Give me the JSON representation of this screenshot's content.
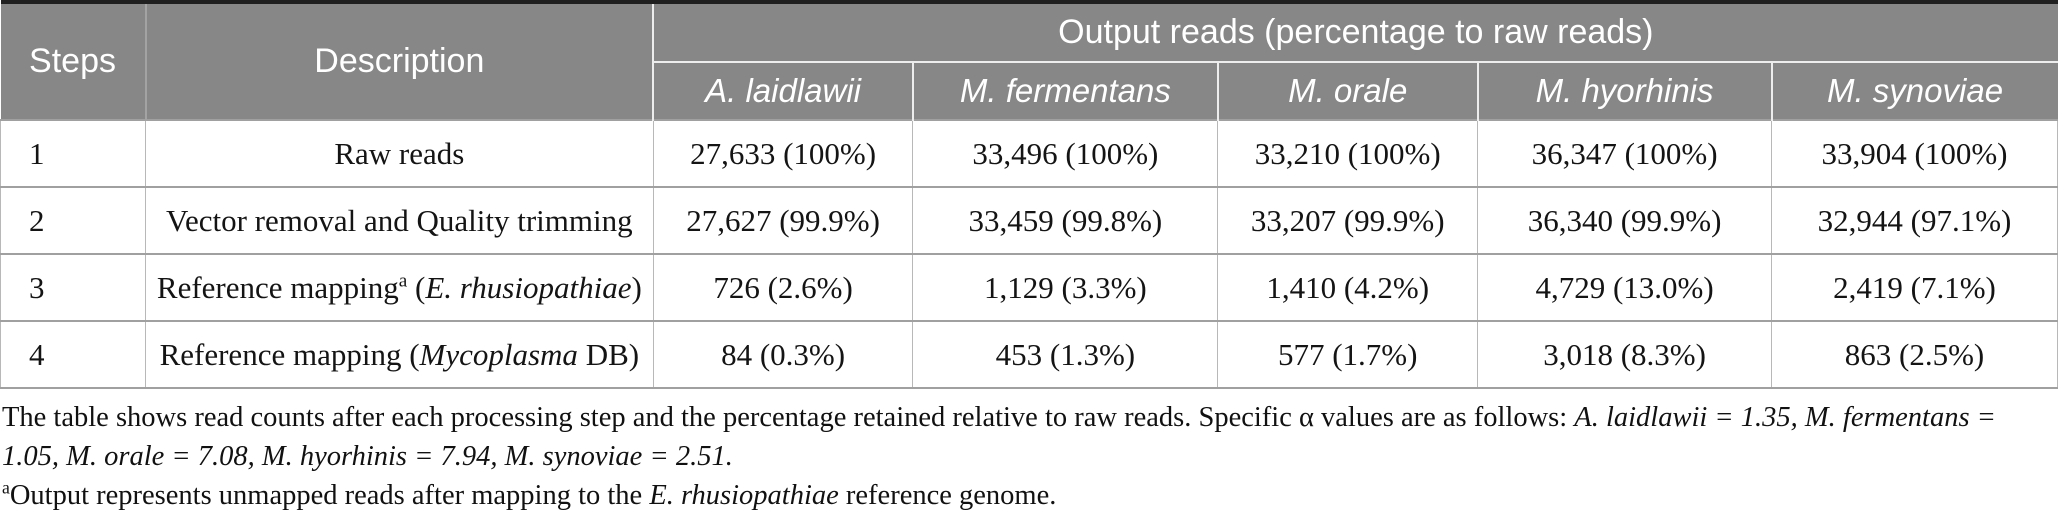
{
  "colors": {
    "header_background": "#878787",
    "header_text": "#ffffff",
    "body_text": "#141414",
    "top_rule": "#1f1f1f",
    "grid_line": "#a0a0a0"
  },
  "table": {
    "header": {
      "steps": "Steps",
      "description": "Description",
      "output_reads": "Output reads (percentage to raw reads)",
      "species": [
        "A. laidlawii",
        "M. fermentans",
        "M. orale",
        "M. hyorhinis",
        "M. synoviae"
      ]
    },
    "rows": [
      {
        "step": "1",
        "description": [
          {
            "t": "Raw reads"
          }
        ],
        "values": [
          "27,633 (100%)",
          "33,496 (100%)",
          "33,210 (100%)",
          "36,347 (100%)",
          "33,904 (100%)"
        ]
      },
      {
        "step": "2",
        "description": [
          {
            "t": "Vector removal and Quality trimming"
          }
        ],
        "values": [
          "27,627 (99.9%)",
          "33,459 (99.8%)",
          "33,207 (99.9%)",
          "36,340 (99.9%)",
          "32,944 (97.1%)"
        ]
      },
      {
        "step": "3",
        "description": [
          {
            "t": "Reference mapping"
          },
          {
            "t": "a",
            "sup": true
          },
          {
            "t": " ("
          },
          {
            "t": "E. rhusiopathiae",
            "i": true
          },
          {
            "t": ")"
          }
        ],
        "values": [
          "726 (2.6%)",
          "1,129 (3.3%)",
          "1,410 (4.2%)",
          "4,729 (13.0%)",
          "2,419 (7.1%)"
        ]
      },
      {
        "step": "4",
        "description": [
          {
            "t": "Reference mapping ("
          },
          {
            "t": "Mycoplasma",
            "i": true
          },
          {
            "t": " DB)"
          }
        ],
        "values": [
          "84 (0.3%)",
          "453 (1.3%)",
          "577 (1.7%)",
          "3,018 (8.3%)",
          "863 (2.5%)"
        ]
      }
    ]
  },
  "footnotes": [
    {
      "segments": [
        {
          "t": "The table shows read counts after each processing step and the percentage retained relative to raw reads. Specific α values are as follows: "
        },
        {
          "t": "A. laidlawii = 1.35, M. fermentans = 1.05, M. orale = 7.08, M. hyorhinis = 7.94, M. synoviae = 2.51.",
          "i": true
        }
      ]
    },
    {
      "segments": [
        {
          "t": "a",
          "sup": true
        },
        {
          "t": "Output represents unmapped reads after mapping to the "
        },
        {
          "t": "E. rhusiopathiae",
          "i": true
        },
        {
          "t": " reference genome."
        }
      ]
    }
  ]
}
